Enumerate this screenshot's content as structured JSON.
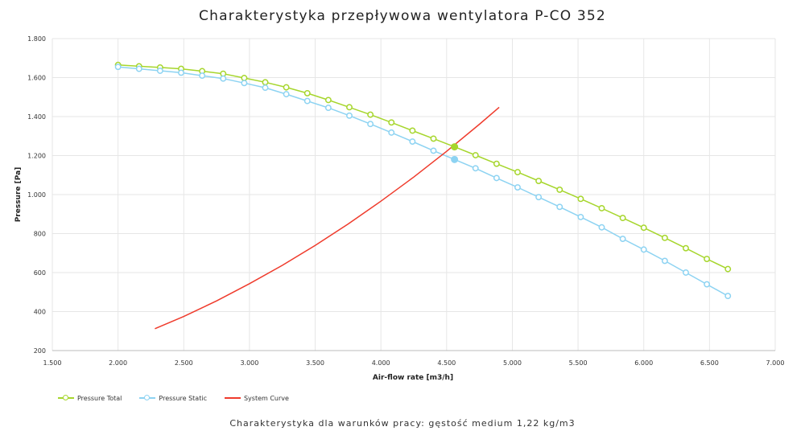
{
  "title": "Charakterystyka przepływowa wentylatora P-CO 352",
  "footnote": "Charakterystyka dla warunków pracy: gęstość medium 1,22 kg/m3",
  "chart_data": {
    "type": "line",
    "xlabel": "Air-flow rate [m3/h]",
    "ylabel": "Pressure [Pa]",
    "xlim": [
      1500,
      7000
    ],
    "ylim": [
      200,
      1800
    ],
    "x_ticks": [
      "1.500",
      "2.000",
      "2.500",
      "3.000",
      "3.500",
      "4.000",
      "4.500",
      "5.000",
      "5.500",
      "6.000",
      "6.500",
      "7.000"
    ],
    "y_ticks": [
      "200",
      "400",
      "600",
      "800",
      "1.000",
      "1.200",
      "1.400",
      "1.600",
      "1.800"
    ],
    "grid": true,
    "legend_position": "bottom-left",
    "series": [
      {
        "name": "Pressure Total",
        "color": "#a6d62c",
        "markers": true,
        "x": [
          2000,
          2160,
          2320,
          2480,
          2640,
          2800,
          2960,
          3120,
          3280,
          3440,
          3600,
          3760,
          3920,
          4080,
          4240,
          4400,
          4560,
          4720,
          4880,
          5040,
          5200,
          5360,
          5520,
          5680,
          5840,
          6000,
          6160,
          6320,
          6480,
          6640
        ],
        "y": [
          1665,
          1658,
          1652,
          1645,
          1633,
          1620,
          1598,
          1576,
          1550,
          1520,
          1485,
          1448,
          1410,
          1370,
          1328,
          1287,
          1245,
          1202,
          1158,
          1115,
          1070,
          1025,
          978,
          930,
          880,
          830,
          778,
          725,
          670,
          618
        ]
      },
      {
        "name": "Pressure Static",
        "color": "#8dd3f2",
        "markers": true,
        "x": [
          2000,
          2160,
          2320,
          2480,
          2640,
          2800,
          2960,
          3120,
          3280,
          3440,
          3600,
          3760,
          3920,
          4080,
          4240,
          4400,
          4560,
          4720,
          4880,
          5040,
          5200,
          5360,
          5520,
          5680,
          5840,
          6000,
          6160,
          6320,
          6480,
          6640
        ],
        "y": [
          1655,
          1645,
          1635,
          1625,
          1610,
          1595,
          1572,
          1548,
          1515,
          1480,
          1445,
          1405,
          1362,
          1318,
          1272,
          1225,
          1180,
          1135,
          1085,
          1037,
          987,
          937,
          885,
          832,
          773,
          718,
          660,
          600,
          540,
          480
        ]
      },
      {
        "name": "System Curve",
        "color": "#ef3b2c",
        "markers": false,
        "x": [
          2280,
          2500,
          2750,
          3000,
          3250,
          3500,
          3750,
          4000,
          4250,
          4500,
          4750,
          4900
        ],
        "y": [
          312,
          375,
          455,
          543,
          637,
          739,
          849,
          966,
          1090,
          1222,
          1361,
          1448
        ]
      }
    ],
    "operating_points": [
      {
        "series": "Pressure Total",
        "x": 4560,
        "y": 1245
      },
      {
        "series": "Pressure Static",
        "x": 4560,
        "y": 1180
      }
    ]
  }
}
